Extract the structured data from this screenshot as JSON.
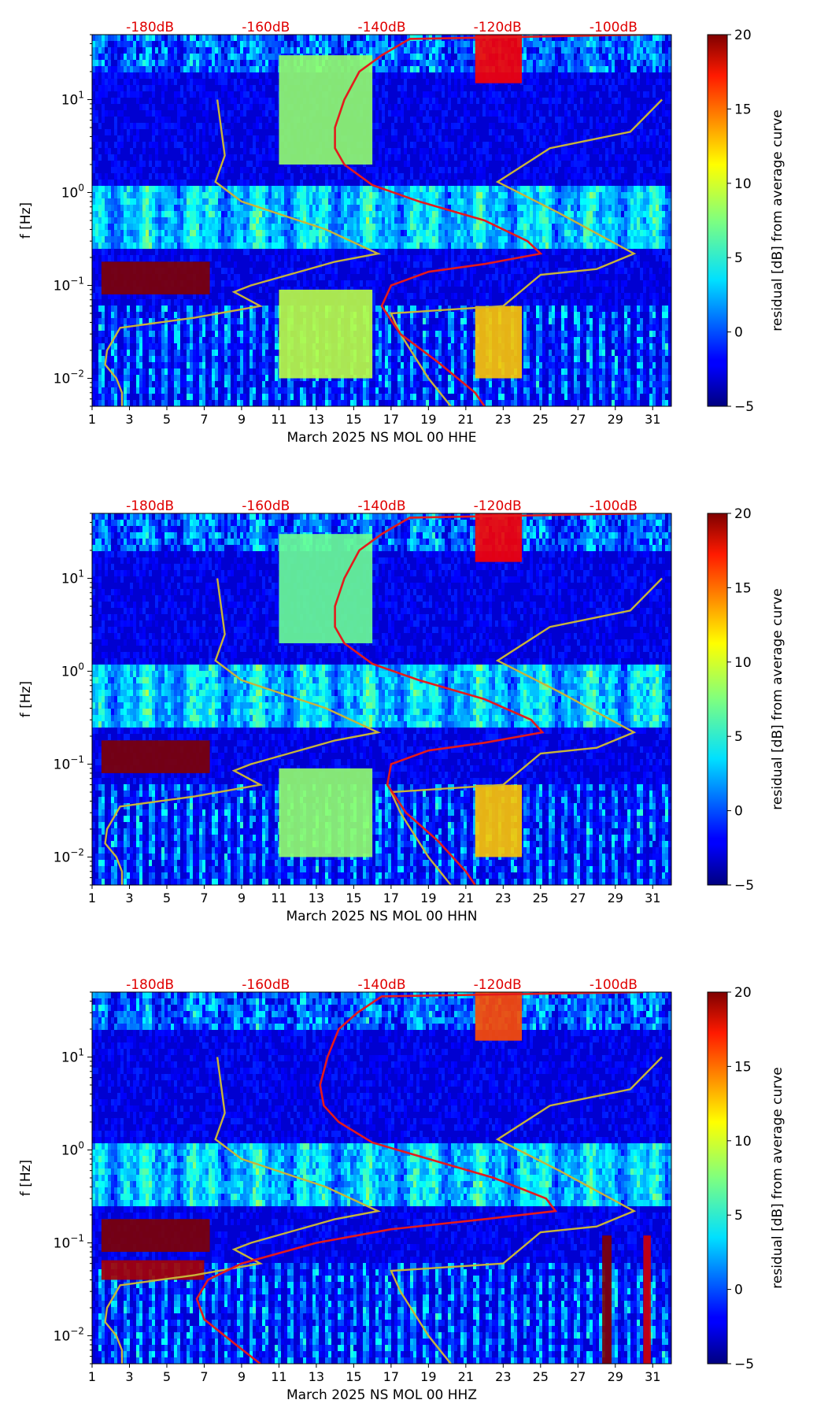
{
  "colors": {
    "top_axis_labels": "#e00000",
    "median_curve": "#e41a1c",
    "noise_model_curves": "#c8b43a",
    "colormap": "jet"
  },
  "chart_data": [
    {
      "type": "heatmap",
      "title": "",
      "xlabel": "March 2025 NS MOL 00 HHE",
      "ylabel": "f [Hz]",
      "colorbar_label": "residual [dB] from average curve",
      "x_ticks": [
        1,
        3,
        5,
        7,
        9,
        11,
        13,
        15,
        17,
        19,
        21,
        23,
        25,
        27,
        29,
        31
      ],
      "xlim": [
        1,
        32
      ],
      "y_scale": "log",
      "ylim": [
        0.005,
        50
      ],
      "y_tick_labels": [
        {
          "base": "10",
          "exp": "−2",
          "value": 0.01
        },
        {
          "base": "10",
          "exp": "−1",
          "value": 0.1
        },
        {
          "base": "10",
          "exp": "0",
          "value": 1
        },
        {
          "base": "10",
          "exp": "1",
          "value": 10
        }
      ],
      "colorbar_range": [
        -5,
        20
      ],
      "colorbar_ticks": [
        "20",
        "15",
        "10",
        "5",
        "0",
        "−5"
      ],
      "top_axis_labels": [
        {
          "text": "-180dB",
          "x": 4.1
        },
        {
          "text": "-160dB",
          "x": 10.3
        },
        {
          "text": "-140dB",
          "x": 16.5
        },
        {
          "text": "-120dB",
          "x": 22.7
        },
        {
          "text": "-100dB",
          "x": 28.9
        }
      ],
      "bands": [
        {
          "f0": 0.08,
          "f1": 0.18,
          "x0": 1.5,
          "x1": 7.3,
          "level": 20
        },
        {
          "f0": 15,
          "f1": 50,
          "x0": 21.5,
          "x1": 24,
          "level": 17
        },
        {
          "f0": 0.01,
          "f1": 0.06,
          "x0": 21.5,
          "x1": 24,
          "level": 12
        },
        {
          "f0": 0.01,
          "f1": 0.09,
          "x0": 11,
          "x1": 16,
          "level": 9
        },
        {
          "f0": 2,
          "f1": 30,
          "x0": 11,
          "x1": 16,
          "level": 8
        }
      ],
      "median_curve": [
        {
          "f": 50,
          "x": 30.5
        },
        {
          "f": 45,
          "x": 18
        },
        {
          "f": 30,
          "x": 16.5
        },
        {
          "f": 20,
          "x": 15.3
        },
        {
          "f": 10,
          "x": 14.5
        },
        {
          "f": 5,
          "x": 14
        },
        {
          "f": 3,
          "x": 14
        },
        {
          "f": 2,
          "x": 14.5
        },
        {
          "f": 1.2,
          "x": 16
        },
        {
          "f": 0.8,
          "x": 18.5
        },
        {
          "f": 0.5,
          "x": 22
        },
        {
          "f": 0.3,
          "x": 24.3
        },
        {
          "f": 0.22,
          "x": 25
        },
        {
          "f": 0.17,
          "x": 22
        },
        {
          "f": 0.14,
          "x": 19
        },
        {
          "f": 0.1,
          "x": 17
        },
        {
          "f": 0.06,
          "x": 16.5
        },
        {
          "f": 0.03,
          "x": 17.5
        },
        {
          "f": 0.015,
          "x": 19.5
        },
        {
          "f": 0.007,
          "x": 21.5
        },
        {
          "f": 0.005,
          "x": 22
        }
      ],
      "noise_models": [
        [
          {
            "f": 10,
            "x": 7.7
          },
          {
            "f": 2.5,
            "x": 8.1
          },
          {
            "f": 1.3,
            "x": 7.6
          },
          {
            "f": 0.8,
            "x": 9
          },
          {
            "f": 0.4,
            "x": 13.5
          },
          {
            "f": 0.22,
            "x": 16.3
          },
          {
            "f": 0.18,
            "x": 14
          },
          {
            "f": 0.1,
            "x": 9.5
          },
          {
            "f": 0.085,
            "x": 8.6
          },
          {
            "f": 0.06,
            "x": 10
          },
          {
            "f": 0.045,
            "x": 6.5
          },
          {
            "f": 0.035,
            "x": 2.5
          },
          {
            "f": 0.02,
            "x": 1.8
          },
          {
            "f": 0.014,
            "x": 1.7
          },
          {
            "f": 0.01,
            "x": 2.3
          },
          {
            "f": 0.007,
            "x": 2.6
          },
          {
            "f": 0.005,
            "x": 2.6
          }
        ],
        [
          {
            "f": 10,
            "x": 31.5
          },
          {
            "f": 4.5,
            "x": 29.8
          },
          {
            "f": 3,
            "x": 25.5
          },
          {
            "f": 1.3,
            "x": 22.7
          },
          {
            "f": 0.6,
            "x": 26
          },
          {
            "f": 0.22,
            "x": 30
          },
          {
            "f": 0.15,
            "x": 28
          },
          {
            "f": 0.13,
            "x": 25
          },
          {
            "f": 0.06,
            "x": 23
          },
          {
            "f": 0.05,
            "x": 17
          },
          {
            "f": 0.03,
            "x": 17.5
          },
          {
            "f": 0.01,
            "x": 19
          },
          {
            "f": 0.005,
            "x": 20.2
          }
        ]
      ]
    },
    {
      "type": "heatmap",
      "title": "",
      "xlabel": "March 2025 NS MOL 00 HHN",
      "ylabel": "f [Hz]",
      "colorbar_label": "residual [dB] from average curve",
      "x_ticks": [
        1,
        3,
        5,
        7,
        9,
        11,
        13,
        15,
        17,
        19,
        21,
        23,
        25,
        27,
        29,
        31
      ],
      "xlim": [
        1,
        32
      ],
      "y_scale": "log",
      "ylim": [
        0.005,
        50
      ],
      "y_tick_labels": [
        {
          "base": "10",
          "exp": "−2",
          "value": 0.01
        },
        {
          "base": "10",
          "exp": "−1",
          "value": 0.1
        },
        {
          "base": "10",
          "exp": "0",
          "value": 1
        },
        {
          "base": "10",
          "exp": "1",
          "value": 10
        }
      ],
      "colorbar_range": [
        -5,
        20
      ],
      "colorbar_ticks": [
        "20",
        "15",
        "10",
        "5",
        "0",
        "−5"
      ],
      "top_axis_labels": [
        {
          "text": "-180dB",
          "x": 4.1
        },
        {
          "text": "-160dB",
          "x": 10.3
        },
        {
          "text": "-140dB",
          "x": 16.5
        },
        {
          "text": "-120dB",
          "x": 22.7
        },
        {
          "text": "-100dB",
          "x": 28.9
        }
      ],
      "bands": [
        {
          "f0": 0.08,
          "f1": 0.18,
          "x0": 1.5,
          "x1": 7.3,
          "level": 20
        },
        {
          "f0": 15,
          "f1": 50,
          "x0": 21.5,
          "x1": 24,
          "level": 17
        },
        {
          "f0": 0.01,
          "f1": 0.06,
          "x0": 21.5,
          "x1": 24,
          "level": 12
        },
        {
          "f0": 0.01,
          "f1": 0.09,
          "x0": 11,
          "x1": 16,
          "level": 8
        },
        {
          "f0": 2,
          "f1": 30,
          "x0": 11,
          "x1": 16,
          "level": 7
        }
      ],
      "median_curve": [
        {
          "f": 50,
          "x": 30.5
        },
        {
          "f": 45,
          "x": 18
        },
        {
          "f": 30,
          "x": 16.5
        },
        {
          "f": 20,
          "x": 15.3
        },
        {
          "f": 10,
          "x": 14.5
        },
        {
          "f": 5,
          "x": 14
        },
        {
          "f": 3,
          "x": 14
        },
        {
          "f": 2,
          "x": 14.5
        },
        {
          "f": 1.2,
          "x": 16
        },
        {
          "f": 0.8,
          "x": 18.5
        },
        {
          "f": 0.5,
          "x": 22
        },
        {
          "f": 0.3,
          "x": 24.5
        },
        {
          "f": 0.22,
          "x": 25.1
        },
        {
          "f": 0.17,
          "x": 22
        },
        {
          "f": 0.14,
          "x": 19
        },
        {
          "f": 0.1,
          "x": 17
        },
        {
          "f": 0.06,
          "x": 16.8
        },
        {
          "f": 0.03,
          "x": 17.8
        },
        {
          "f": 0.015,
          "x": 19.5
        },
        {
          "f": 0.007,
          "x": 21
        },
        {
          "f": 0.005,
          "x": 21.5
        }
      ],
      "noise_models": [
        [
          {
            "f": 10,
            "x": 7.7
          },
          {
            "f": 2.5,
            "x": 8.1
          },
          {
            "f": 1.3,
            "x": 7.6
          },
          {
            "f": 0.8,
            "x": 9
          },
          {
            "f": 0.4,
            "x": 13.5
          },
          {
            "f": 0.22,
            "x": 16.3
          },
          {
            "f": 0.18,
            "x": 14
          },
          {
            "f": 0.1,
            "x": 9.5
          },
          {
            "f": 0.085,
            "x": 8.6
          },
          {
            "f": 0.06,
            "x": 10
          },
          {
            "f": 0.045,
            "x": 6.5
          },
          {
            "f": 0.035,
            "x": 2.5
          },
          {
            "f": 0.02,
            "x": 1.8
          },
          {
            "f": 0.014,
            "x": 1.7
          },
          {
            "f": 0.01,
            "x": 2.3
          },
          {
            "f": 0.007,
            "x": 2.6
          },
          {
            "f": 0.005,
            "x": 2.6
          }
        ],
        [
          {
            "f": 10,
            "x": 31.5
          },
          {
            "f": 4.5,
            "x": 29.8
          },
          {
            "f": 3,
            "x": 25.5
          },
          {
            "f": 1.3,
            "x": 22.7
          },
          {
            "f": 0.6,
            "x": 26
          },
          {
            "f": 0.22,
            "x": 30
          },
          {
            "f": 0.15,
            "x": 28
          },
          {
            "f": 0.13,
            "x": 25
          },
          {
            "f": 0.06,
            "x": 23
          },
          {
            "f": 0.05,
            "x": 17
          },
          {
            "f": 0.03,
            "x": 17.5
          },
          {
            "f": 0.01,
            "x": 19
          },
          {
            "f": 0.005,
            "x": 20.2
          }
        ]
      ]
    },
    {
      "type": "heatmap",
      "title": "",
      "xlabel": "March 2025 NS MOL 00 HHZ",
      "ylabel": "f [Hz]",
      "colorbar_label": "residual [dB] from average curve",
      "x_ticks": [
        1,
        3,
        5,
        7,
        9,
        11,
        13,
        15,
        17,
        19,
        21,
        23,
        25,
        27,
        29,
        31
      ],
      "xlim": [
        1,
        32
      ],
      "y_scale": "log",
      "ylim": [
        0.005,
        50
      ],
      "y_tick_labels": [
        {
          "base": "10",
          "exp": "−2",
          "value": 0.01
        },
        {
          "base": "10",
          "exp": "−1",
          "value": 0.1
        },
        {
          "base": "10",
          "exp": "0",
          "value": 1
        },
        {
          "base": "10",
          "exp": "1",
          "value": 10
        }
      ],
      "colorbar_range": [
        -5,
        20
      ],
      "colorbar_ticks": [
        "20",
        "15",
        "10",
        "5",
        "0",
        "−5"
      ],
      "top_axis_labels": [
        {
          "text": "-180dB",
          "x": 4.1
        },
        {
          "text": "-160dB",
          "x": 10.3
        },
        {
          "text": "-140dB",
          "x": 16.5
        },
        {
          "text": "-120dB",
          "x": 22.7
        },
        {
          "text": "-100dB",
          "x": 28.9
        }
      ],
      "bands": [
        {
          "f0": 0.08,
          "f1": 0.18,
          "x0": 1.5,
          "x1": 7.3,
          "level": 20
        },
        {
          "f0": 0.04,
          "f1": 0.065,
          "x0": 1.5,
          "x1": 7,
          "level": 19
        },
        {
          "f0": 15,
          "f1": 50,
          "x0": 21.5,
          "x1": 24,
          "level": 15
        },
        {
          "f0": 0.005,
          "f1": 0.12,
          "x0": 28.3,
          "x1": 28.8,
          "level": 20
        },
        {
          "f0": 0.005,
          "f1": 0.12,
          "x0": 30.5,
          "x1": 30.9,
          "level": 18
        }
      ],
      "median_curve": [
        {
          "f": 50,
          "x": 30.5
        },
        {
          "f": 45,
          "x": 16.5
        },
        {
          "f": 30,
          "x": 15.2
        },
        {
          "f": 20,
          "x": 14.2
        },
        {
          "f": 10,
          "x": 13.6
        },
        {
          "f": 5,
          "x": 13.2
        },
        {
          "f": 3,
          "x": 13.4
        },
        {
          "f": 2,
          "x": 14.2
        },
        {
          "f": 1.2,
          "x": 16
        },
        {
          "f": 0.8,
          "x": 19
        },
        {
          "f": 0.5,
          "x": 22.5
        },
        {
          "f": 0.3,
          "x": 25.3
        },
        {
          "f": 0.22,
          "x": 25.8
        },
        {
          "f": 0.18,
          "x": 22
        },
        {
          "f": 0.14,
          "x": 17
        },
        {
          "f": 0.1,
          "x": 13
        },
        {
          "f": 0.06,
          "x": 9
        },
        {
          "f": 0.04,
          "x": 7.2
        },
        {
          "f": 0.025,
          "x": 6.6
        },
        {
          "f": 0.015,
          "x": 7
        },
        {
          "f": 0.008,
          "x": 8.7
        },
        {
          "f": 0.005,
          "x": 10
        }
      ],
      "noise_models": [
        [
          {
            "f": 10,
            "x": 7.7
          },
          {
            "f": 2.5,
            "x": 8.1
          },
          {
            "f": 1.3,
            "x": 7.6
          },
          {
            "f": 0.8,
            "x": 9
          },
          {
            "f": 0.4,
            "x": 13.5
          },
          {
            "f": 0.22,
            "x": 16.3
          },
          {
            "f": 0.18,
            "x": 14
          },
          {
            "f": 0.1,
            "x": 9.5
          },
          {
            "f": 0.085,
            "x": 8.6
          },
          {
            "f": 0.06,
            "x": 10
          },
          {
            "f": 0.045,
            "x": 6.5
          },
          {
            "f": 0.035,
            "x": 2.5
          },
          {
            "f": 0.02,
            "x": 1.8
          },
          {
            "f": 0.014,
            "x": 1.7
          },
          {
            "f": 0.01,
            "x": 2.3
          },
          {
            "f": 0.007,
            "x": 2.6
          },
          {
            "f": 0.005,
            "x": 2.6
          }
        ],
        [
          {
            "f": 10,
            "x": 31.5
          },
          {
            "f": 4.5,
            "x": 29.8
          },
          {
            "f": 3,
            "x": 25.5
          },
          {
            "f": 1.3,
            "x": 22.7
          },
          {
            "f": 0.6,
            "x": 26
          },
          {
            "f": 0.22,
            "x": 30
          },
          {
            "f": 0.15,
            "x": 28
          },
          {
            "f": 0.13,
            "x": 25
          },
          {
            "f": 0.06,
            "x": 23
          },
          {
            "f": 0.05,
            "x": 17
          },
          {
            "f": 0.03,
            "x": 17.5
          },
          {
            "f": 0.01,
            "x": 19
          },
          {
            "f": 0.005,
            "x": 20.2
          }
        ]
      ]
    }
  ]
}
